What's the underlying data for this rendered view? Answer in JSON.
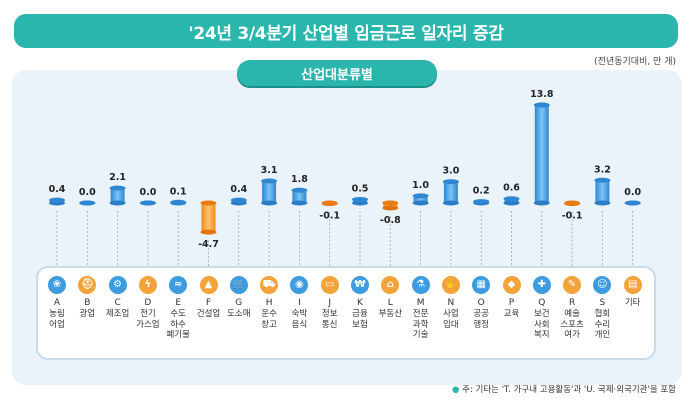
{
  "title": "'24년 3/4분기 산업별 임금근로 일자리 증감",
  "unit_note": "(전년동기대비, 만 개)",
  "tab_label": "산업대분류별",
  "footnote_bullet": "●",
  "footnote": "주: 기타는 'T. 가구내 고용활동'과 'U. 국제·외국기관'을 포함",
  "colors": {
    "teal": "#2ab5ad",
    "blue": "#3d9be0",
    "orange": "#f4a23a"
  },
  "chart_data": {
    "type": "bar",
    "title": "'24년 3/4분기 산업별 임금근로 일자리 증감",
    "categories": [
      "A",
      "B",
      "C",
      "D",
      "E",
      "F",
      "G",
      "H",
      "I",
      "J",
      "K",
      "L",
      "M",
      "N",
      "O",
      "P",
      "Q",
      "R",
      "S",
      "기타"
    ],
    "category_names": [
      "농림\n어업",
      "광업",
      "제조업",
      "전기\n가스업",
      "수도\n하수\n폐기물",
      "건설업",
      "도소매",
      "운수\n창고",
      "숙박\n음식",
      "정보\n통신",
      "금융\n보험",
      "부동산",
      "전문\n과학\n기술",
      "사업\n임대",
      "공공\n행정",
      "교육",
      "보건\n사회\n복지",
      "예술\n스포츠\n여가",
      "협회\n수리\n개인",
      "기타"
    ],
    "category_icons": [
      "wheat-icon",
      "helmet-icon",
      "factory-gear-icon",
      "lightning-icon",
      "water-tap-icon",
      "cone-icon",
      "shopping-cart-icon",
      "truck-icon",
      "dish-icon",
      "laptop-icon",
      "money-icon",
      "house-icon",
      "microscope-icon",
      "handshake-icon",
      "building-icon",
      "graduation-cap-icon",
      "medical-bag-icon",
      "palette-icon",
      "people-icon",
      "document-icon"
    ],
    "values": [
      0.4,
      0.0,
      2.1,
      0.0,
      0.1,
      -4.7,
      0.4,
      3.1,
      1.8,
      -0.1,
      0.5,
      -0.8,
      1.0,
      3.0,
      0.2,
      0.6,
      13.8,
      -0.1,
      3.2,
      0.0
    ],
    "value_labels": [
      "0.4",
      "0.0",
      "2.1",
      "0.0",
      "0.1",
      "-4.7",
      "0.4",
      "3.1",
      "1.8",
      "-0.1",
      "0.5",
      "-0.8",
      "1.0",
      "3.0",
      "0.2",
      "0.6",
      "13.8",
      "-0.1",
      "3.2",
      "0.0"
    ],
    "ylabel": "",
    "xlabel": ""
  }
}
